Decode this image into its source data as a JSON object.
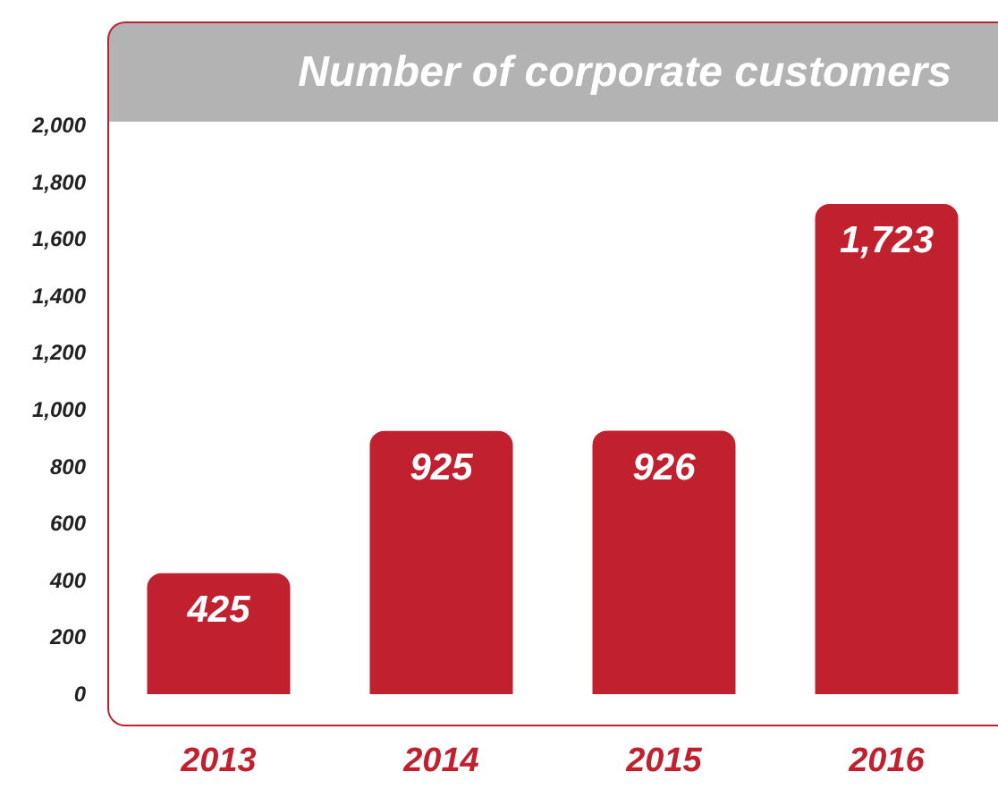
{
  "chart_data": {
    "type": "bar",
    "title": "Number of corporate customers",
    "categories": [
      "2013",
      "2014",
      "2015",
      "2016"
    ],
    "values": [
      425,
      925,
      926,
      1723
    ],
    "value_labels": [
      "425",
      "925",
      "926",
      "1,723"
    ],
    "color": "#c1202f",
    "ylim": [
      0,
      2000
    ],
    "yticks": [
      0,
      {
        "value": 200,
        "label": "200"
      },
      {
        "value": 400,
        "label": "400"
      },
      {
        "value": 600,
        "label": "600"
      },
      {
        "value": 800,
        "label": "800"
      },
      {
        "value": 1000,
        "label": "1,000"
      },
      {
        "value": 1200,
        "label": "1,200"
      },
      {
        "value": 1400,
        "label": "1,400"
      },
      {
        "value": 1600,
        "label": "1,600"
      },
      {
        "value": 1800,
        "label": "1,800"
      },
      {
        "value": 2000,
        "label": "2,000"
      }
    ],
    "grid": false
  }
}
